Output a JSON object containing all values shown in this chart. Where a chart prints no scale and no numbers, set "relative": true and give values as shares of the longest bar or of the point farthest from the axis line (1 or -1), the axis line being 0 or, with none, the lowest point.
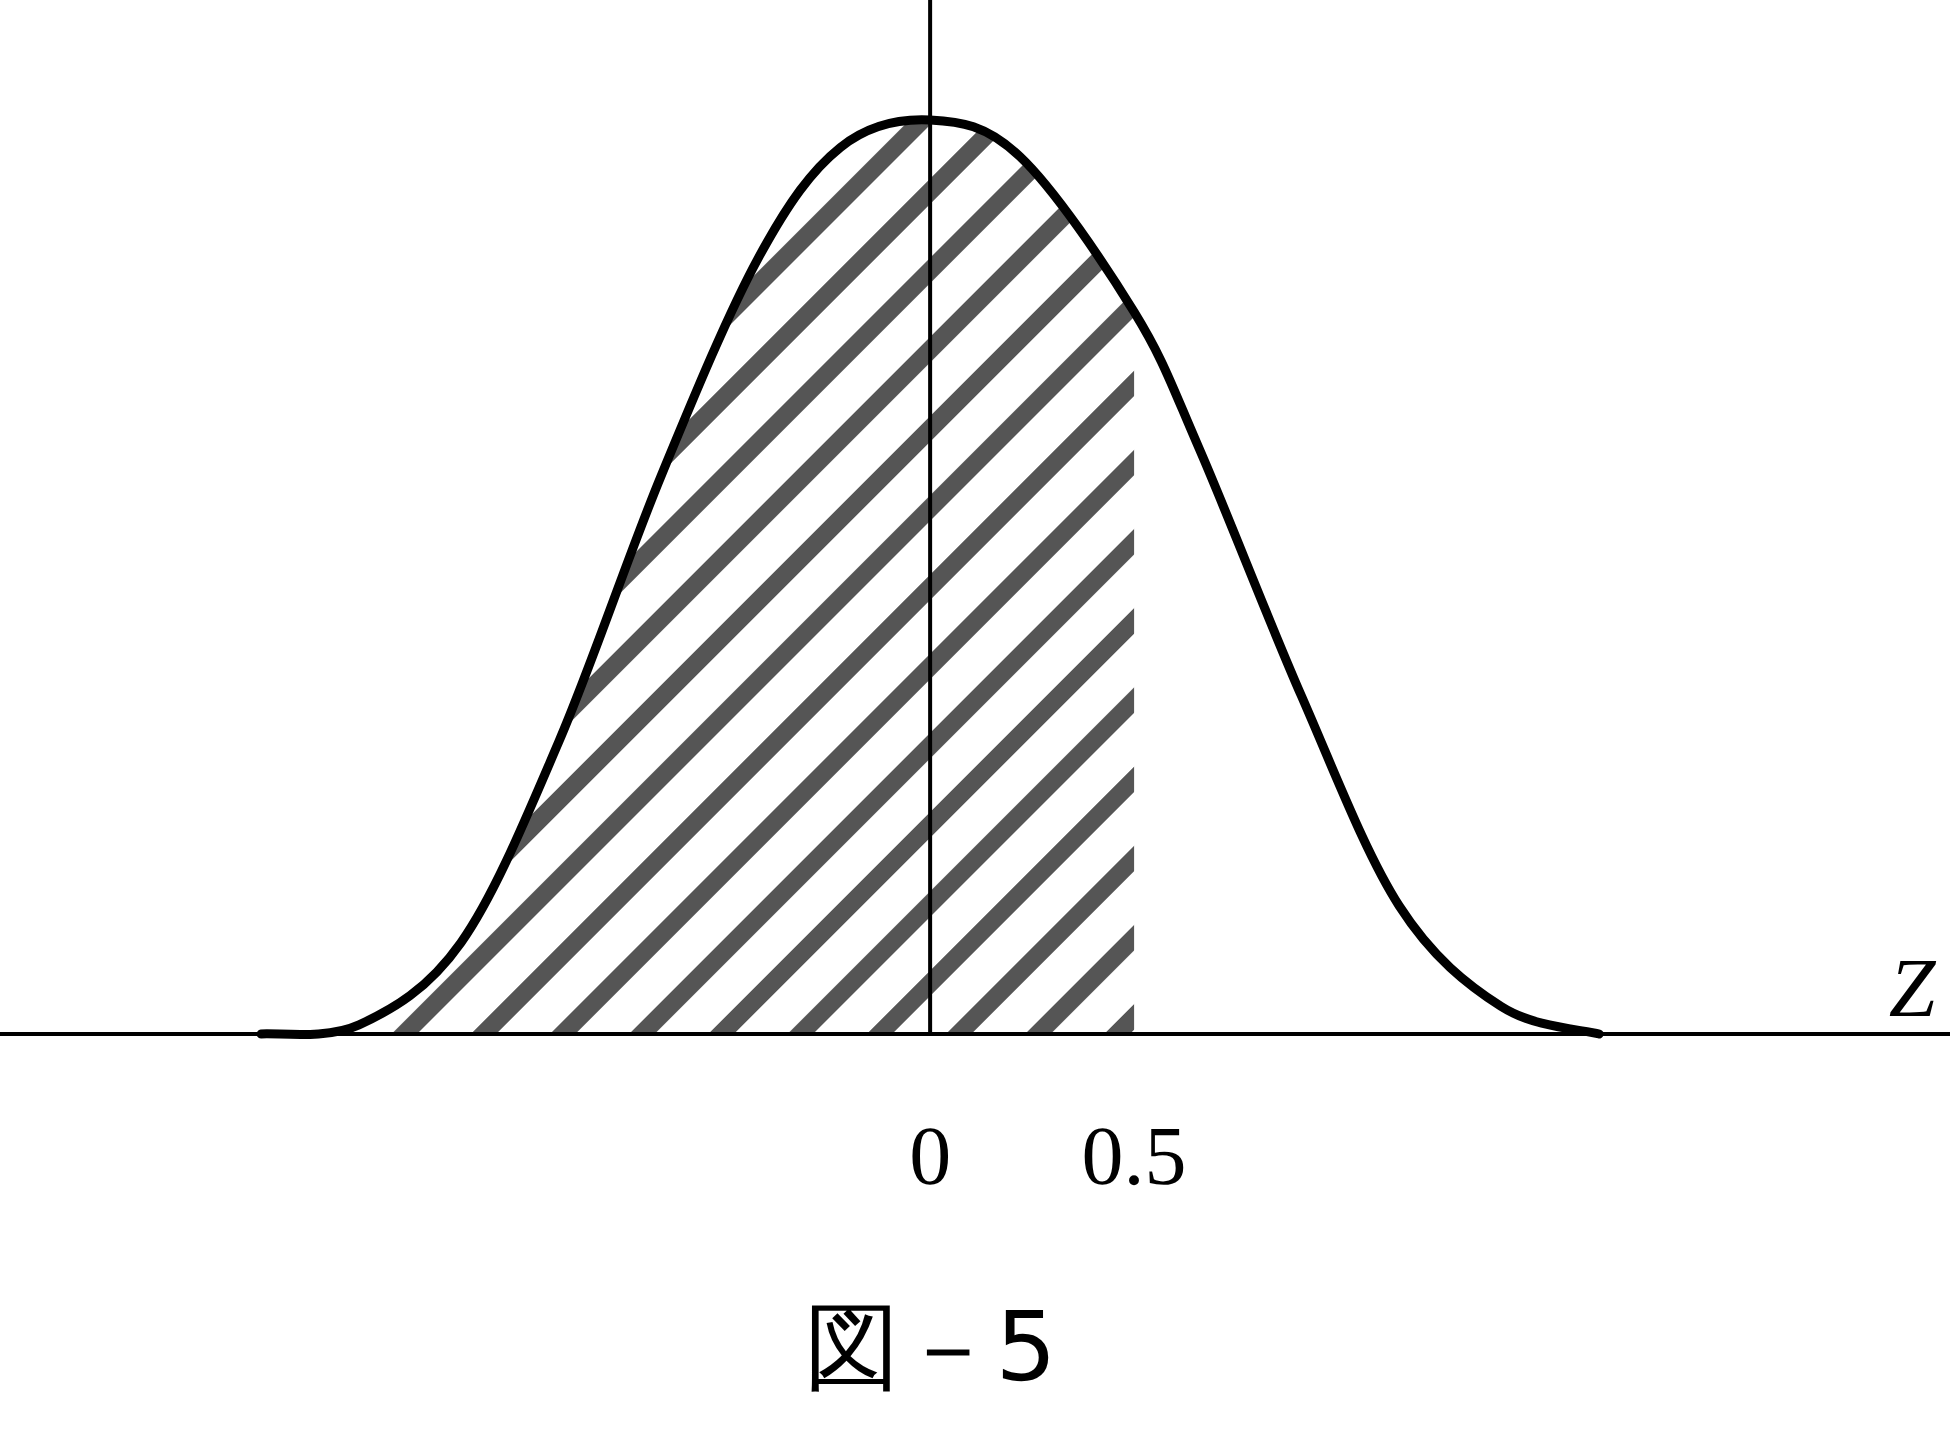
{
  "chart_data": {
    "type": "line",
    "relative": true,
    "xlabel": "Z",
    "x": [
      -1.64,
      -1.4,
      -1.15,
      -0.91,
      -0.66,
      -0.42,
      -0.22,
      0,
      0.22,
      0.5,
      0.66,
      0.91,
      1.15,
      1.4,
      1.64
    ],
    "series": [
      {
        "type": "area",
        "color": "#555555",
        "x": [
          -1.64,
          -1.4,
          -1.15,
          -0.91,
          -0.66,
          -0.42,
          -0.22,
          0,
          0.22,
          0.5
        ],
        "values": [
          0,
          0.01,
          0.1,
          0.32,
          0.61,
          0.85,
          0.97,
          1,
          0.96,
          0.79
        ]
      },
      {
        "type": "line",
        "color": "#000000",
        "values": [
          0,
          0.01,
          0.1,
          0.32,
          0.61,
          0.85,
          0.97,
          1,
          0.96,
          0.79,
          0.64,
          0.37,
          0.14,
          0.03,
          0
        ]
      }
    ],
    "xlim": [
      -2.28,
      2.5
    ],
    "xticks": [
      0,
      0.5
    ],
    "tick_labels": "x",
    "marker": "none",
    "line_style": "solid",
    "annotations": [
      "図－5"
    ]
  }
}
